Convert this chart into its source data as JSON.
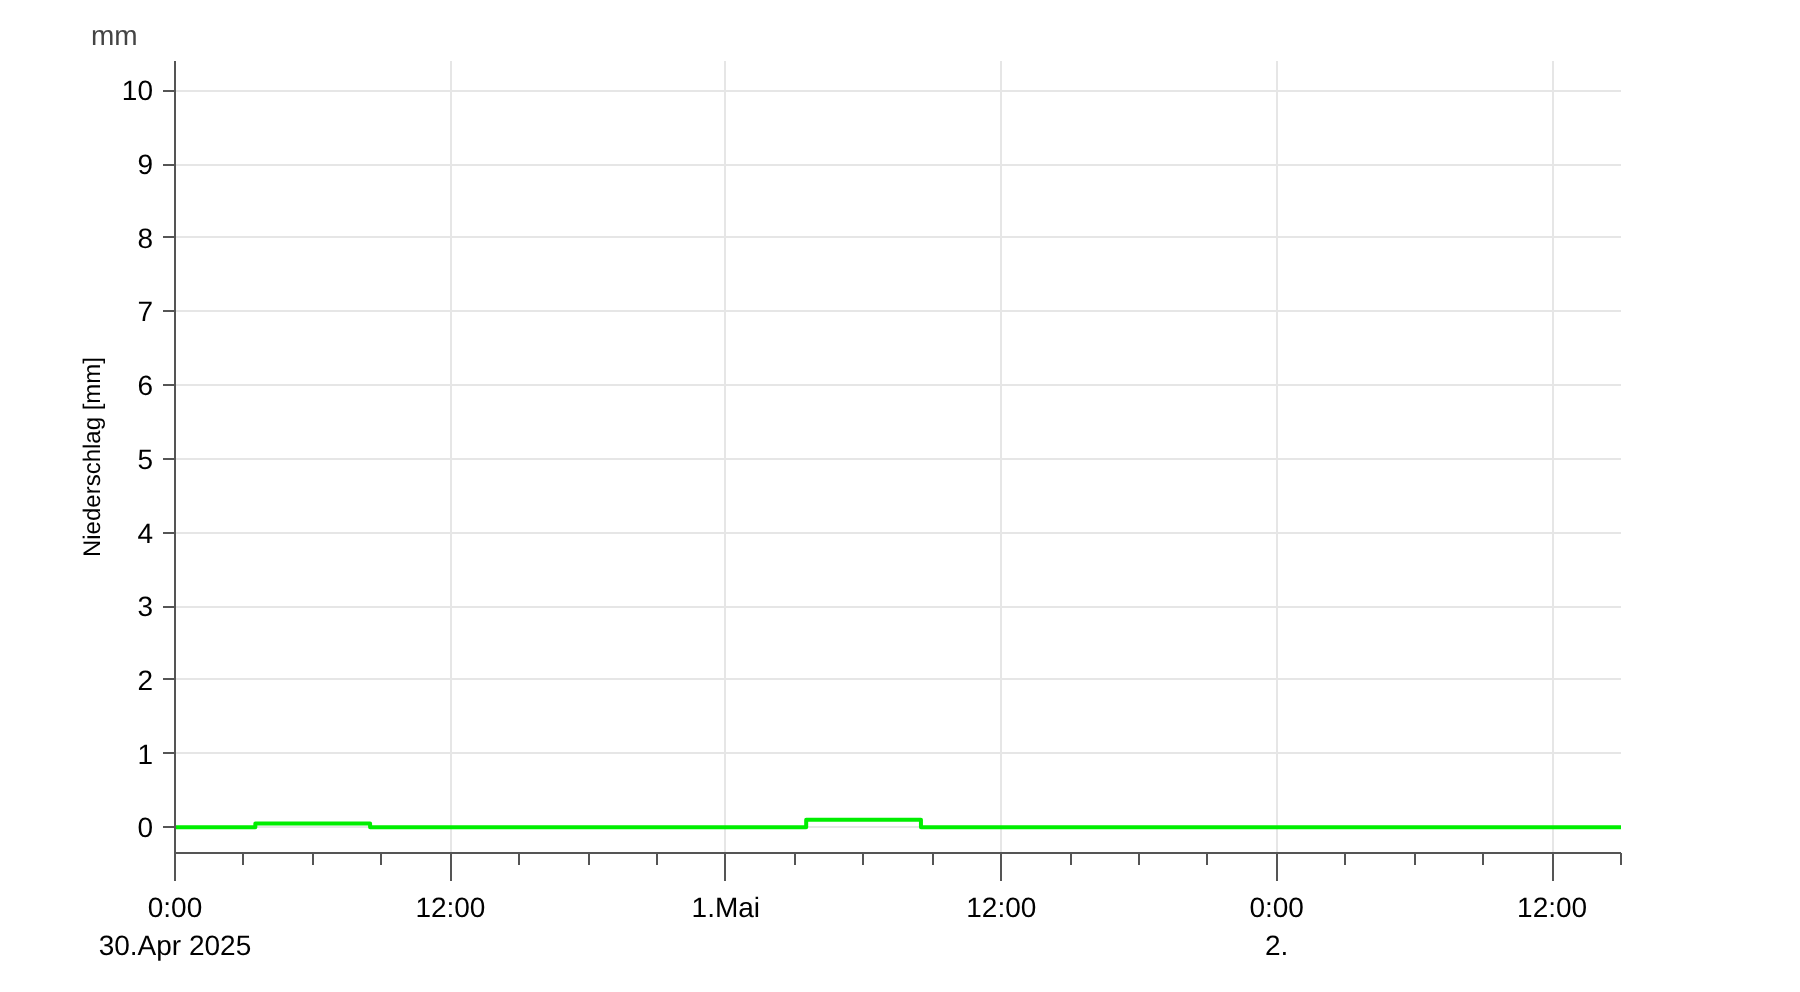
{
  "chart_data": {
    "type": "step",
    "ylabel": "Niederschlag [mm]",
    "annotations": [
      "mm"
    ],
    "x": [
      "2025-04-30T00:00",
      "2025-04-30T01:00",
      "2025-04-30T02:00",
      "2025-04-30T03:00",
      "2025-04-30T04:00",
      "2025-04-30T05:00",
      "2025-04-30T06:00",
      "2025-04-30T07:00",
      "2025-04-30T08:00",
      "2025-04-30T09:00",
      "2025-04-30T10:00",
      "2025-04-30T11:00",
      "2025-04-30T12:00",
      "2025-04-30T13:00",
      "2025-04-30T14:00",
      "2025-04-30T15:00",
      "2025-04-30T16:00",
      "2025-04-30T17:00",
      "2025-04-30T18:00",
      "2025-04-30T19:00",
      "2025-04-30T20:00",
      "2025-04-30T21:00",
      "2025-04-30T22:00",
      "2025-04-30T23:00",
      "2025-05-01T00:00",
      "2025-05-01T01:00",
      "2025-05-01T02:00",
      "2025-05-01T03:00",
      "2025-05-01T04:00",
      "2025-05-01T05:00",
      "2025-05-01T06:00",
      "2025-05-01T07:00",
      "2025-05-01T08:00",
      "2025-05-01T09:00",
      "2025-05-01T10:00",
      "2025-05-01T11:00",
      "2025-05-01T12:00",
      "2025-05-01T13:00",
      "2025-05-01T14:00",
      "2025-05-01T15:00",
      "2025-05-01T16:00",
      "2025-05-01T17:00",
      "2025-05-01T18:00",
      "2025-05-01T19:00",
      "2025-05-01T20:00",
      "2025-05-01T21:00",
      "2025-05-01T22:00",
      "2025-05-01T23:00",
      "2025-05-02T00:00",
      "2025-05-02T01:00",
      "2025-05-02T02:00",
      "2025-05-02T03:00",
      "2025-05-02T04:00",
      "2025-05-02T05:00",
      "2025-05-02T06:00",
      "2025-05-02T07:00",
      "2025-05-02T08:00",
      "2025-05-02T09:00",
      "2025-05-02T10:00",
      "2025-05-02T11:00",
      "2025-05-02T12:00",
      "2025-05-02T13:00",
      "2025-05-02T14:00",
      "2025-05-02T15:00"
    ],
    "series": [
      {
        "color": "#00ee00",
        "values": [
          0,
          0,
          0,
          0,
          0.05,
          0.05,
          0.05,
          0.05,
          0.05,
          0,
          0,
          0,
          0,
          0,
          0,
          0,
          0,
          0,
          0,
          0,
          0,
          0,
          0,
          0,
          0,
          0,
          0,
          0,
          0.1,
          0.1,
          0.1,
          0.1,
          0.1,
          0,
          0,
          0,
          0,
          0,
          0,
          0,
          0,
          0,
          0,
          0,
          0,
          0,
          0,
          0,
          0,
          0,
          0,
          0,
          0,
          0,
          0,
          0,
          0,
          0,
          0,
          0,
          0,
          0,
          0,
          0
        ]
      }
    ],
    "xlim": [
      "2025-04-30T00:00",
      "2025-05-02T15:00"
    ],
    "ylim": [
      -0.35,
      10.4
    ],
    "xticks": [
      {
        "value": "2025-04-30T00:00",
        "label": "0:00\n30.Apr 2025"
      },
      {
        "value": "2025-04-30T03:00",
        "label": null
      },
      {
        "value": "2025-04-30T06:00",
        "label": null
      },
      {
        "value": "2025-04-30T09:00",
        "label": null
      },
      {
        "value": "2025-04-30T12:00",
        "label": "12:00"
      },
      {
        "value": "2025-04-30T15:00",
        "label": null
      },
      {
        "value": "2025-04-30T18:00",
        "label": null
      },
      {
        "value": "2025-04-30T21:00",
        "label": null
      },
      {
        "value": "2025-05-01T00:00",
        "label": "1.Mai"
      },
      {
        "value": "2025-05-01T03:00",
        "label": null
      },
      {
        "value": "2025-05-01T06:00",
        "label": null
      },
      {
        "value": "2025-05-01T09:00",
        "label": null
      },
      {
        "value": "2025-05-01T12:00",
        "label": "12:00"
      },
      {
        "value": "2025-05-01T15:00",
        "label": null
      },
      {
        "value": "2025-05-01T18:00",
        "label": null
      },
      {
        "value": "2025-05-01T21:00",
        "label": null
      },
      {
        "value": "2025-05-02T00:00",
        "label": "0:00\n2."
      },
      {
        "value": "2025-05-02T03:00",
        "label": null
      },
      {
        "value": "2025-05-02T06:00",
        "label": null
      },
      {
        "value": "2025-05-02T09:00",
        "label": null
      },
      {
        "value": "2025-05-02T12:00",
        "label": "12:00"
      },
      {
        "value": "2025-05-02T15:00",
        "label": null
      }
    ],
    "yticks": [
      0,
      1,
      2,
      3,
      4,
      5,
      6,
      7,
      8,
      9,
      10
    ],
    "grid": true,
    "marker": "none",
    "line_style": "solid"
  }
}
